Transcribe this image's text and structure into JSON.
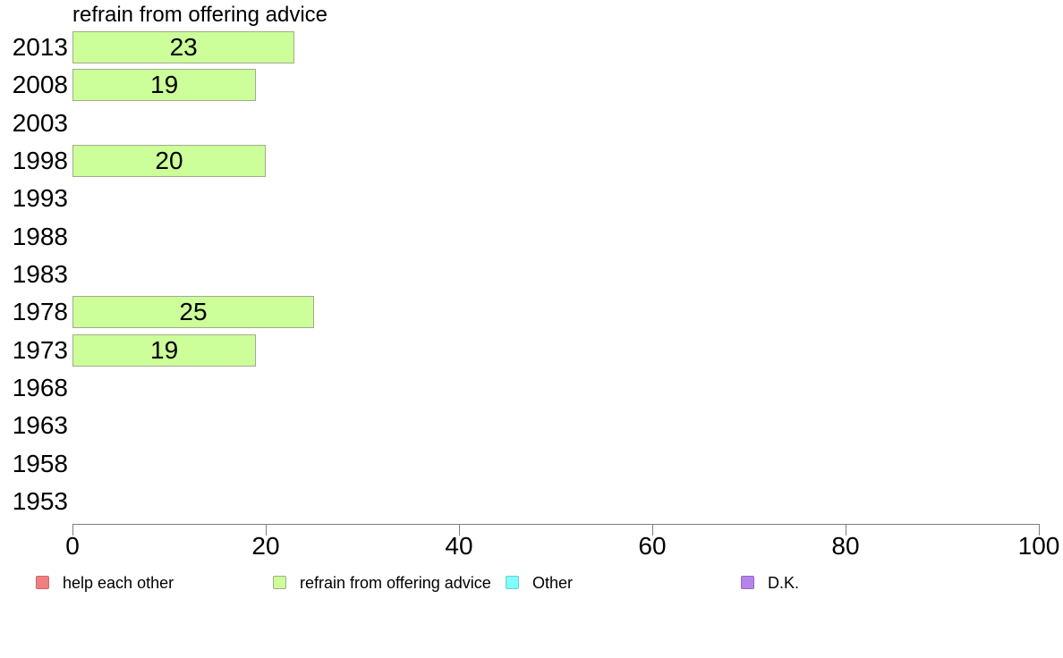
{
  "chart_data": {
    "type": "bar",
    "orientation": "horizontal",
    "title": "refrain from offering advice",
    "categories": [
      "2013",
      "2008",
      "2003",
      "1998",
      "1993",
      "1988",
      "1983",
      "1978",
      "1973",
      "1968",
      "1963",
      "1958",
      "1953"
    ],
    "values": [
      23,
      19,
      null,
      20,
      null,
      null,
      null,
      25,
      19,
      null,
      null,
      null,
      null
    ],
    "xlabel": "",
    "ylabel": "",
    "xlim": [
      0,
      100
    ],
    "x_ticks": [
      0,
      20,
      40,
      60,
      80,
      100
    ],
    "grid": false,
    "bar_labels_shown": true,
    "colors": {
      "bar_fill": "#ccff99",
      "bar_border": "#a3ab8d",
      "axis": "#7f7f7f",
      "text": "#000000",
      "background": "#ffffff"
    },
    "legend_position": "bottom",
    "legend": [
      {
        "label": "help each other",
        "fill": "#f08080",
        "border": "#c96a6a"
      },
      {
        "label": "refrain from offering advice",
        "fill": "#ccff99",
        "border": "#a3ab8d"
      },
      {
        "label": "Other",
        "fill": "#80ffff",
        "border": "#6accc9"
      },
      {
        "label": "D.K.",
        "fill": "#b583ea",
        "border": "#9468c2"
      }
    ]
  }
}
